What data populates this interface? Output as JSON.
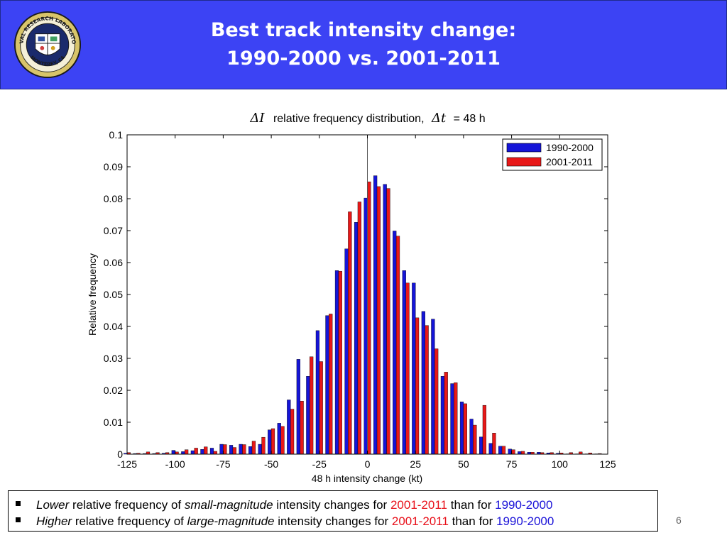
{
  "header": {
    "title_line1": "Best track intensity change:",
    "title_line2": "1990-2000 vs. 2001-2011",
    "background": "#3c43f4",
    "logo_text_top": "NAVAL RESEARCH LABORATORY",
    "logo_text_bottom": "MONTEREY, CA"
  },
  "notes": [
    {
      "parts": [
        {
          "text": "Lower",
          "style": "italic"
        },
        {
          "text": " relative frequency of "
        },
        {
          "text": "small-magnitude",
          "style": "italic"
        },
        {
          "text": " intensity changes for "
        },
        {
          "text": "2001-2011",
          "color": "#e8101a"
        },
        {
          "text": " than for "
        },
        {
          "text": "1990-2000",
          "color": "#1a12d8"
        }
      ]
    },
    {
      "parts": [
        {
          "text": "Higher",
          "style": "italic"
        },
        {
          "text": " relative frequency of "
        },
        {
          "text": "large-magnitude",
          "style": "italic"
        },
        {
          "text": " intensity changes for "
        },
        {
          "text": "2001-2011",
          "color": "#e8101a"
        },
        {
          "text": " than for "
        },
        {
          "text": "1990-2000",
          "color": "#1a12d8"
        }
      ]
    }
  ],
  "page_number": "6",
  "chart_data": {
    "type": "bar",
    "title_delta_i": "ΔI",
    "title_middle": "relative frequency distribution,",
    "title_delta_t": "Δt",
    "title_value": "= 48 h",
    "xlabel": "48 h intensity change (kt)",
    "ylabel": "Relative frequency",
    "xlim": [
      -125,
      125
    ],
    "ylim": [
      0,
      0.1
    ],
    "xticks": [
      -125,
      -100,
      -75,
      -50,
      -25,
      0,
      25,
      50,
      75,
      100,
      125
    ],
    "yticks": [
      0,
      0.01,
      0.02,
      0.03,
      0.04,
      0.05,
      0.06,
      0.07,
      0.08,
      0.09,
      0.1
    ],
    "ytick_labels": [
      "0",
      "0.01",
      "0.02",
      "0.03",
      "0.04",
      "0.05",
      "0.06",
      "0.07",
      "0.08",
      "0.09",
      "0.1"
    ],
    "grid": false,
    "legend_position": "top-right",
    "zero_line_x": 0,
    "x": [
      -125,
      -120,
      -115,
      -110,
      -105,
      -100,
      -95,
      -90,
      -85,
      -80,
      -75,
      -70,
      -65,
      -60,
      -55,
      -50,
      -45,
      -40,
      -35,
      -30,
      -25,
      -20,
      -15,
      -10,
      -5,
      0,
      5,
      10,
      15,
      20,
      25,
      30,
      35,
      40,
      45,
      50,
      55,
      60,
      65,
      70,
      75,
      80,
      85,
      90,
      95,
      100,
      105,
      110,
      115,
      120
    ],
    "series": [
      {
        "name": "1990-2000",
        "color": "#1515d8",
        "values": [
          0.0003,
          0.0002,
          0.0002,
          0.0002,
          0.0003,
          0.0012,
          0.0008,
          0.0011,
          0.0015,
          0.0019,
          0.0031,
          0.0028,
          0.0031,
          0.0024,
          0.0031,
          0.0076,
          0.0097,
          0.017,
          0.0297,
          0.0244,
          0.0387,
          0.0434,
          0.0575,
          0.0643,
          0.0726,
          0.0802,
          0.0872,
          0.0845,
          0.0699,
          0.0575,
          0.0536,
          0.0447,
          0.0423,
          0.0244,
          0.0221,
          0.0164,
          0.011,
          0.0054,
          0.0034,
          0.0025,
          0.0016,
          0.0008,
          0.0006,
          0.0006,
          0.0004,
          0.0003,
          0.0001,
          0.0001,
          0.0001,
          0.0001
        ]
      },
      {
        "name": "2001-2011",
        "color": "#e81818",
        "values": [
          0.0005,
          0.0003,
          0.0007,
          0.0005,
          0.0005,
          0.0007,
          0.0014,
          0.0019,
          0.0023,
          0.0009,
          0.003,
          0.0021,
          0.003,
          0.0041,
          0.0053,
          0.008,
          0.0087,
          0.0141,
          0.0166,
          0.0305,
          0.029,
          0.0439,
          0.0573,
          0.0759,
          0.079,
          0.0853,
          0.0838,
          0.0832,
          0.0683,
          0.0536,
          0.0427,
          0.0403,
          0.033,
          0.0257,
          0.0224,
          0.0158,
          0.0091,
          0.0153,
          0.0066,
          0.0025,
          0.0014,
          0.0009,
          0.0006,
          0.0005,
          0.0005,
          0.0004,
          0.0005,
          0.0007,
          0.0004,
          0.0002
        ]
      }
    ]
  }
}
